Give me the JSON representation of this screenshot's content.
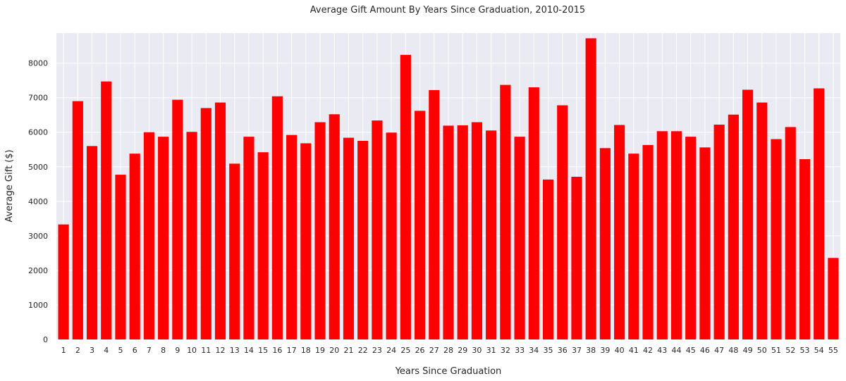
{
  "chart_data": {
    "type": "bar",
    "title": "Average Gift Amount By Years Since Graduation, 2010-2015",
    "xlabel": "Years Since Graduation",
    "ylabel": "Average Gift ($)",
    "categories": [
      "1",
      "2",
      "3",
      "4",
      "5",
      "6",
      "7",
      "8",
      "9",
      "10",
      "11",
      "12",
      "13",
      "14",
      "15",
      "16",
      "17",
      "18",
      "19",
      "20",
      "21",
      "22",
      "23",
      "24",
      "25",
      "26",
      "27",
      "28",
      "29",
      "30",
      "31",
      "32",
      "33",
      "34",
      "35",
      "36",
      "37",
      "38",
      "39",
      "40",
      "41",
      "42",
      "43",
      "44",
      "45",
      "46",
      "47",
      "48",
      "49",
      "50",
      "51",
      "52",
      "53",
      "54",
      "55"
    ],
    "values": [
      3330,
      6900,
      5600,
      7470,
      4770,
      5380,
      6000,
      5870,
      6940,
      6010,
      6700,
      6860,
      5090,
      5870,
      5420,
      7040,
      5920,
      5680,
      6290,
      6520,
      5840,
      5750,
      6340,
      5990,
      8240,
      6620,
      7220,
      6190,
      6200,
      6290,
      6050,
      7370,
      5870,
      7300,
      4630,
      6780,
      4710,
      8720,
      5540,
      6210,
      5380,
      5630,
      6030,
      6030,
      5870,
      5560,
      6220,
      6510,
      7230,
      6860,
      5800,
      6150,
      5220,
      7270,
      2360
    ],
    "yticks": [
      0,
      1000,
      2000,
      3000,
      4000,
      5000,
      6000,
      7000,
      8000
    ],
    "ylim": [
      0,
      8870
    ],
    "grid": true,
    "legend": "none",
    "colors": {
      "bar": "#ff0000",
      "plot_background": "#eaeaf2",
      "grid": "#ffffff",
      "text": "#262626"
    }
  }
}
